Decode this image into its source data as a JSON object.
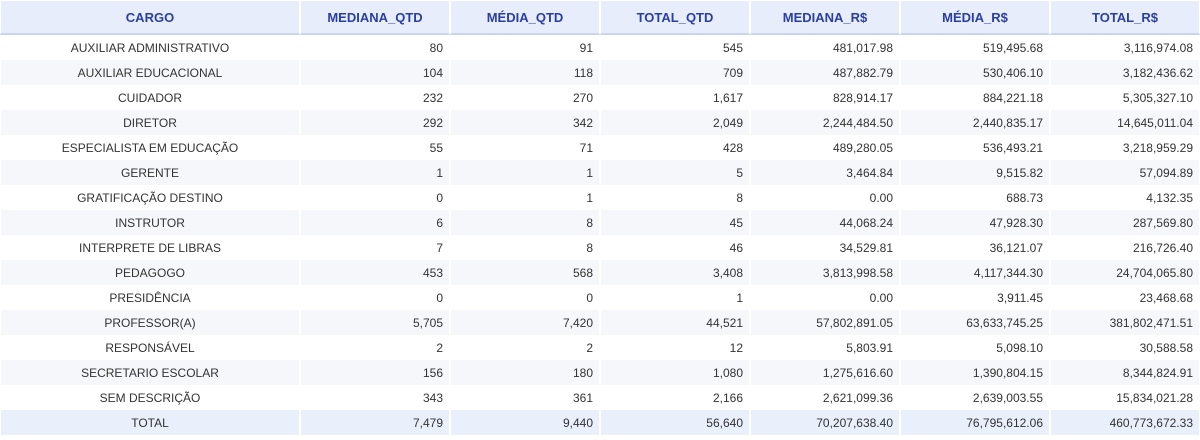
{
  "table": {
    "headers": [
      "CARGO",
      "MEDIANA_QTD",
      "MÉDIA_QTD",
      "TOTAL_QTD",
      "MEDIANA_R$",
      "MÉDIA_R$",
      "TOTAL_R$"
    ],
    "rows": [
      [
        "AUXILIAR ADMINISTRATIVO",
        "80",
        "91",
        "545",
        "481,017.98",
        "519,495.68",
        "3,116,974.08"
      ],
      [
        "AUXILIAR EDUCACIONAL",
        "104",
        "118",
        "709",
        "487,882.79",
        "530,406.10",
        "3,182,436.62"
      ],
      [
        "CUIDADOR",
        "232",
        "270",
        "1,617",
        "828,914.17",
        "884,221.18",
        "5,305,327.10"
      ],
      [
        "DIRETOR",
        "292",
        "342",
        "2,049",
        "2,244,484.50",
        "2,440,835.17",
        "14,645,011.04"
      ],
      [
        "ESPECIALISTA EM EDUCAÇÃO",
        "55",
        "71",
        "428",
        "489,280.05",
        "536,493.21",
        "3,218,959.29"
      ],
      [
        "GERENTE",
        "1",
        "1",
        "5",
        "3,464.84",
        "9,515.82",
        "57,094.89"
      ],
      [
        "GRATIFICAÇÃO DESTINO",
        "0",
        "1",
        "8",
        "0.00",
        "688.73",
        "4,132.35"
      ],
      [
        "INSTRUTOR",
        "6",
        "8",
        "45",
        "44,068.24",
        "47,928.30",
        "287,569.80"
      ],
      [
        "INTERPRETE DE LIBRAS",
        "7",
        "8",
        "46",
        "34,529.81",
        "36,121.07",
        "216,726.40"
      ],
      [
        "PEDAGOGO",
        "453",
        "568",
        "3,408",
        "3,813,998.58",
        "4,117,344.30",
        "24,704,065.80"
      ],
      [
        "PRESIDÊNCIA",
        "0",
        "0",
        "1",
        "0.00",
        "3,911.45",
        "23,468.68"
      ],
      [
        "PROFESSOR(A)",
        "5,705",
        "7,420",
        "44,521",
        "57,802,891.05",
        "63,633,745.25",
        "381,802,471.51"
      ],
      [
        "RESPONSÁVEL",
        "2",
        "2",
        "12",
        "5,803.91",
        "5,098.10",
        "30,588.58"
      ],
      [
        "SECRETARIO ESCOLAR",
        "156",
        "180",
        "1,080",
        "1,275,616.60",
        "1,390,804.15",
        "8,344,824.91"
      ],
      [
        "SEM DESCRIÇÃO",
        "343",
        "361",
        "2,166",
        "2,621,099.36",
        "2,639,003.55",
        "15,834,021.28"
      ]
    ],
    "total": [
      "TOTAL",
      "7,479",
      "9,440",
      "56,640",
      "70,207,638.40",
      "76,795,612.06",
      "460,773,672.33"
    ]
  }
}
